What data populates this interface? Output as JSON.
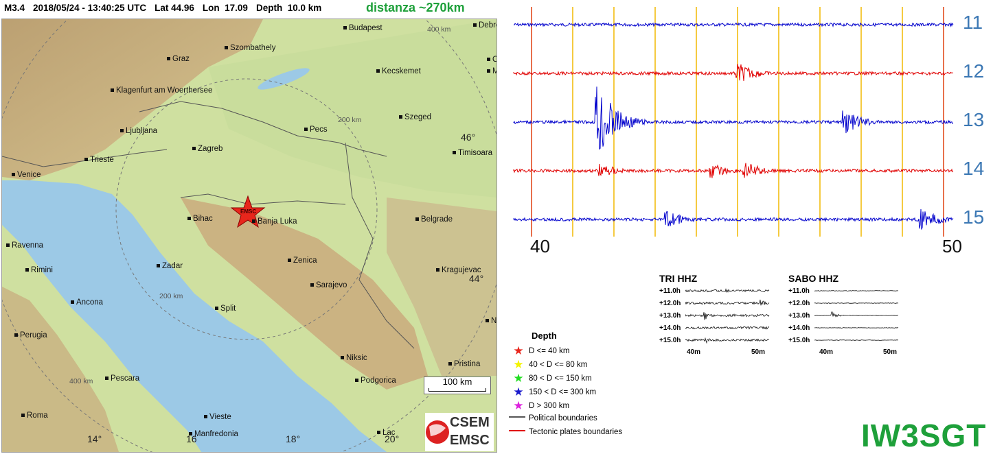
{
  "header": {
    "magnitude": "M3.4",
    "datetime": "2018/05/24 - 13:40:25 UTC",
    "lat": "Lat 44.96",
    "lon": "Lon  17.09",
    "depth": "Depth  10.0 km",
    "distance": "distanza ~270km"
  },
  "map": {
    "cities": [
      "Budapest",
      "Debre",
      "Szombathely",
      "Graz",
      "Or",
      "Kecskemet",
      "Mi",
      "Klagenfurt am Woerthersee",
      "Szeged",
      "Ljubljana",
      "Pecs",
      "Zagreb",
      "Trieste",
      "Timisoara",
      "Venice",
      "Bihac",
      "Banja Luka",
      "Belgrade",
      "Ravenna",
      "Rimini",
      "Zadar",
      "Zenica",
      "Kragujevac",
      "Sarajevo",
      "Ancona",
      "Split",
      "Ni",
      "Perugia",
      "Niksic",
      "Pristina",
      "Pescara",
      "Podgorica",
      "Roma",
      "Vieste",
      "Manfredonia",
      "Lac"
    ],
    "ring_labels": [
      "400 km",
      "200 km",
      "200 km",
      "400 km"
    ],
    "coords": [
      "46°",
      "44°",
      "14°",
      "16",
      "18°",
      "20°"
    ],
    "epicenter_label": "EMSC",
    "scale_label": "100 km",
    "logo_top": "CSEM",
    "logo_bottom": "EMSC",
    "colors": {
      "sea": "#9cc9e6",
      "land": "#cfe0a0",
      "mountain": "#c7a77a",
      "epicenter": "#e8261c"
    }
  },
  "seismogram": {
    "trace_numbers": [
      "11",
      "12",
      "13",
      "14",
      "15"
    ],
    "trace_colors": [
      "#0000cc",
      "#e00000",
      "#0000cc",
      "#e00000",
      "#0000cc"
    ],
    "start_label": "40",
    "end_label": "50",
    "minute_line_color": "#f2b800",
    "boundary_line_color": "#e04010"
  },
  "mini": {
    "tri": {
      "title": "TRI HHZ",
      "rows": [
        "+11.0h",
        "+12.0h",
        "+13.0h",
        "+14.0h",
        "+15.0h"
      ],
      "start": "40m",
      "end": "50m"
    },
    "sabo": {
      "title": "SABO HHZ",
      "rows": [
        "+11.0h",
        "+12.0h",
        "+13.0h",
        "+14.0h",
        "+15.0h"
      ],
      "start": "40m",
      "end": "50m"
    }
  },
  "legend": {
    "title": "Depth",
    "items": [
      {
        "label": "D <= 40 km",
        "color": "#e8261c"
      },
      {
        "label": "40 < D <= 80 km",
        "color": "#f4f400"
      },
      {
        "label": "80 < D <= 150 km",
        "color": "#22dd22"
      },
      {
        "label": "150 < D <= 300 km",
        "color": "#1a1acc"
      },
      {
        "label": "D > 300 km",
        "color": "#dd22dd"
      }
    ],
    "lines": [
      {
        "label": "Political boundaries",
        "color": "#555555"
      },
      {
        "label": "Tectonic plates boundaries",
        "color": "#e00000"
      }
    ]
  },
  "callsign": "IW3SGT"
}
